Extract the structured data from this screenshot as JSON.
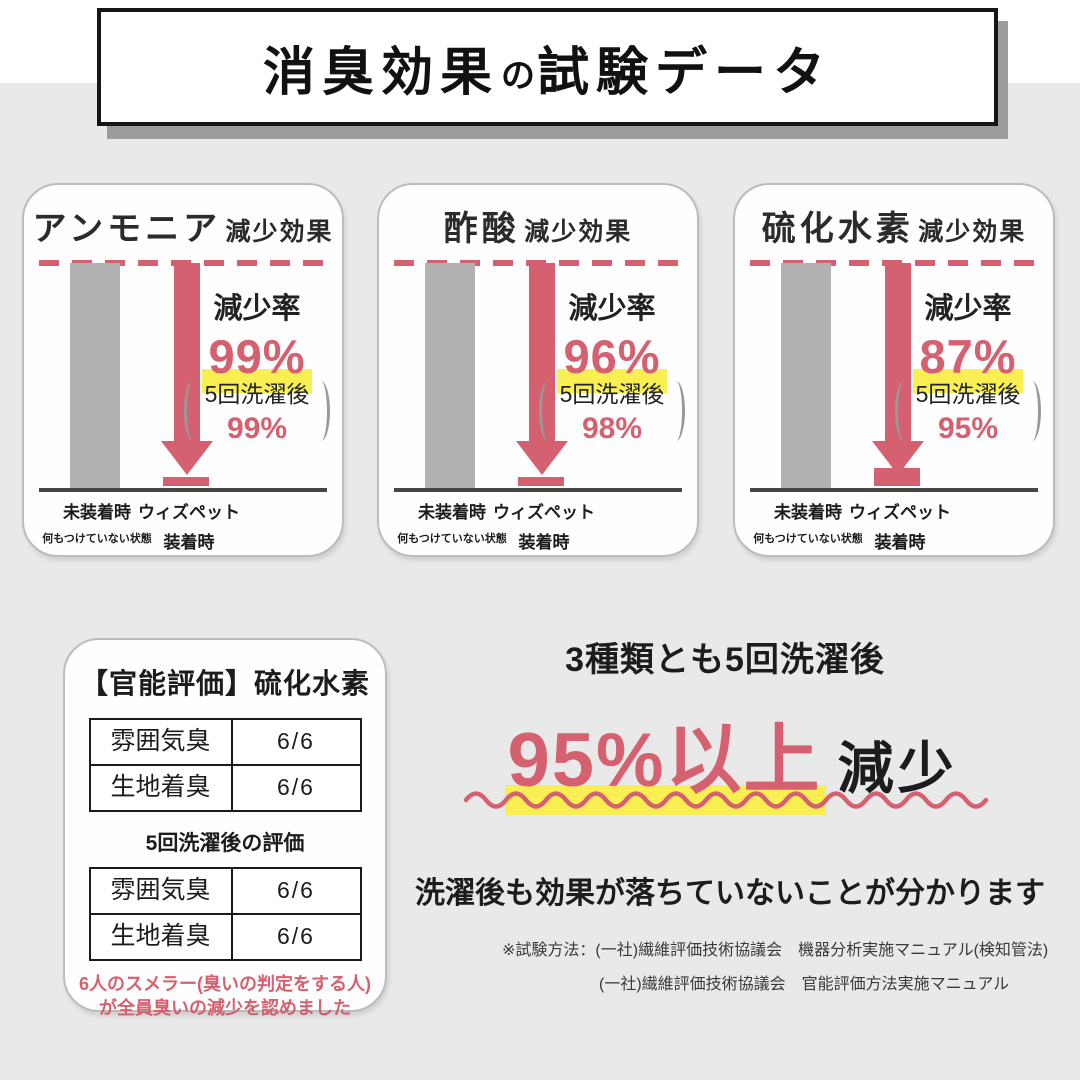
{
  "page": {
    "background": "#e9e9e9",
    "accent_red": "#d5606f",
    "highlight_yellow": "#f9ee52",
    "bar_gray": "#b1b1b1",
    "title": {
      "part1": "消臭効果",
      "part2": "の",
      "part3": "試験データ"
    }
  },
  "cards": [
    {
      "title_main": "アンモニア",
      "title_suffix": "減少効果",
      "rate_label": "減少率",
      "rate": "99%",
      "rate_value": 99,
      "paren_label": "5回洗濯後",
      "paren_value": "99%",
      "xlabel1": "未装着時",
      "xlabel1_sub": "何もつけていない状態",
      "xlabel2": "ウィズペット",
      "xlabel2_sub": "装着時"
    },
    {
      "title_main": "酢酸",
      "title_suffix": "減少効果",
      "rate_label": "減少率",
      "rate": "96%",
      "rate_value": 96,
      "paren_label": "5回洗濯後",
      "paren_value": "98%",
      "xlabel1": "未装着時",
      "xlabel1_sub": "何もつけていない状態",
      "xlabel2": "ウィズペット",
      "xlabel2_sub": "装着時"
    },
    {
      "title_main": "硫化水素",
      "title_suffix": "減少効果",
      "rate_label": "減少率",
      "rate": "87%",
      "rate_value": 87,
      "paren_label": "5回洗濯後",
      "paren_value": "95%",
      "xlabel1": "未装着時",
      "xlabel1_sub": "何もつけていない状態",
      "xlabel2": "ウィズペット",
      "xlabel2_sub": "装着時"
    }
  ],
  "sensory": {
    "title": "【官能評価】硫化水素",
    "table1": {
      "rows": [
        {
          "label": "雰囲気臭",
          "value": "6/6"
        },
        {
          "label": "生地着臭",
          "value": "6/6"
        }
      ]
    },
    "subtitle": "5回洗濯後の評価",
    "table2": {
      "rows": [
        {
          "label": "雰囲気臭",
          "value": "6/6"
        },
        {
          "label": "生地着臭",
          "value": "6/6"
        }
      ]
    },
    "note_line1": "6人のスメラー(臭いの判定をする人)",
    "note_line2": "が全員臭いの減少を認めました"
  },
  "summary": {
    "headline": "3種類とも5回洗濯後",
    "big_red": "95%以上",
    "big_black": "減少",
    "explain": "洗濯後も効果が落ちていないことが分かります",
    "footnote1": "※試験方法：(一社)繊維評価技術協議会　機器分析実施マニュアル(検知管法)",
    "footnote2": "(一社)繊維評価技術協議会　官能評価方法実施マニュアル"
  },
  "chart_data": [
    {
      "type": "bar",
      "title": "アンモニア減少効果",
      "categories": [
        "未装着時(何もつけていない状態)",
        "ウィズペット装着時"
      ],
      "values": [
        100,
        1
      ],
      "ylim": [
        0,
        100
      ],
      "annotations": {
        "reduction_rate": "99%",
        "after_5_washes": "99%"
      }
    },
    {
      "type": "bar",
      "title": "酢酸減少効果",
      "categories": [
        "未装着時(何もつけていない状態)",
        "ウィズペット装着時"
      ],
      "values": [
        100,
        4
      ],
      "ylim": [
        0,
        100
      ],
      "annotations": {
        "reduction_rate": "96%",
        "after_5_washes": "98%"
      }
    },
    {
      "type": "bar",
      "title": "硫化水素減少効果",
      "categories": [
        "未装着時(何もつけていない状態)",
        "ウィズペット装着時"
      ],
      "values": [
        100,
        13
      ],
      "ylim": [
        0,
        100
      ],
      "annotations": {
        "reduction_rate": "87%",
        "after_5_washes": "95%"
      }
    },
    {
      "type": "table",
      "title": "【官能評価】硫化水素",
      "rows": [
        [
          "雰囲気臭",
          "6/6"
        ],
        [
          "生地着臭",
          "6/6"
        ]
      ],
      "after_wash_title": "5回洗濯後の評価",
      "after_wash_rows": [
        [
          "雰囲気臭",
          "6/6"
        ],
        [
          "生地着臭",
          "6/6"
        ]
      ],
      "note": "6人のスメラー(臭いの判定をする人)が全員臭いの減少を認めました"
    }
  ]
}
